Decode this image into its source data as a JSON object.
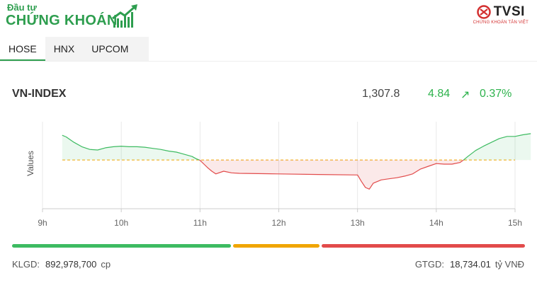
{
  "header": {
    "logo_top": "Đầu tư",
    "logo_main": "CHỨNG KHOÁN",
    "partner_name": "TVSI",
    "partner_sub": "CHỨNG KHOÁN TÂN VIỆT"
  },
  "tabs": [
    {
      "label": "HOSE",
      "active": true
    },
    {
      "label": "HNX",
      "active": false
    },
    {
      "label": "UPCOM",
      "active": false
    }
  ],
  "index": {
    "name": "VN-INDEX",
    "value": "1,307.8",
    "change": "4.84",
    "arrow": "↗",
    "percent": "0.37%"
  },
  "chart_data": {
    "type": "line",
    "ylabel": "Values",
    "x_ticks": [
      "9h",
      "10h",
      "11h",
      "12h",
      "13h",
      "14h",
      "15h"
    ],
    "reference": 1302.96,
    "xlim": [
      9,
      15
    ],
    "ylim": [
      1294,
      1310
    ],
    "colors": {
      "up": "#3dbb61",
      "down": "#e24b4b",
      "ref": "#f0a500",
      "grid": "#e8e8e8"
    },
    "series": [
      {
        "x": [
          9.25,
          9.3,
          9.35,
          9.4,
          9.5,
          9.6,
          9.7,
          9.8,
          9.9,
          10.0,
          10.1,
          10.2,
          10.3,
          10.4,
          10.5,
          10.6,
          10.7,
          10.8,
          10.9,
          10.95,
          11.0,
          11.05,
          11.1,
          11.15,
          11.2,
          11.3,
          11.4,
          11.5,
          11.5,
          12.0,
          12.5,
          13.0,
          13.05,
          13.1,
          13.15,
          13.2,
          13.3,
          13.4,
          13.5,
          13.6,
          13.7,
          13.8,
          13.9,
          14.0,
          14.1,
          14.2,
          14.3,
          14.35,
          14.4,
          14.5,
          14.6,
          14.7,
          14.8,
          14.9,
          15.0,
          15.1,
          15.2
        ],
        "y": [
          1307.5,
          1307.2,
          1306.7,
          1306.2,
          1305.4,
          1304.9,
          1304.8,
          1305.2,
          1305.4,
          1305.5,
          1305.4,
          1305.4,
          1305.3,
          1305.1,
          1304.9,
          1304.6,
          1304.4,
          1304.0,
          1303.6,
          1303.2,
          1302.9,
          1302.2,
          1301.5,
          1300.9,
          1300.4,
          1300.9,
          1300.6,
          1300.5,
          1300.5,
          1300.4,
          1300.3,
          1300.2,
          1299.0,
          1297.9,
          1297.6,
          1298.7,
          1299.3,
          1299.5,
          1299.7,
          1300.0,
          1300.4,
          1301.3,
          1301.8,
          1302.3,
          1302.2,
          1302.2,
          1302.5,
          1303.0,
          1303.6,
          1304.7,
          1305.5,
          1306.2,
          1306.9,
          1307.3,
          1307.3,
          1307.6,
          1307.8
        ]
      }
    ]
  },
  "footer": {
    "klgd_label": "KLGD:",
    "klgd_value": "892,978,700",
    "klgd_unit": "cp",
    "gtgd_label": "GTGD:",
    "gtgd_value": "18,734.01",
    "gtgd_unit": "tỷ VNĐ"
  },
  "breadth": {
    "advancing": 43,
    "unchanged": 17,
    "declining": 40,
    "colors": [
      "#3dbb61",
      "#f0a500",
      "#e24b4b"
    ]
  }
}
